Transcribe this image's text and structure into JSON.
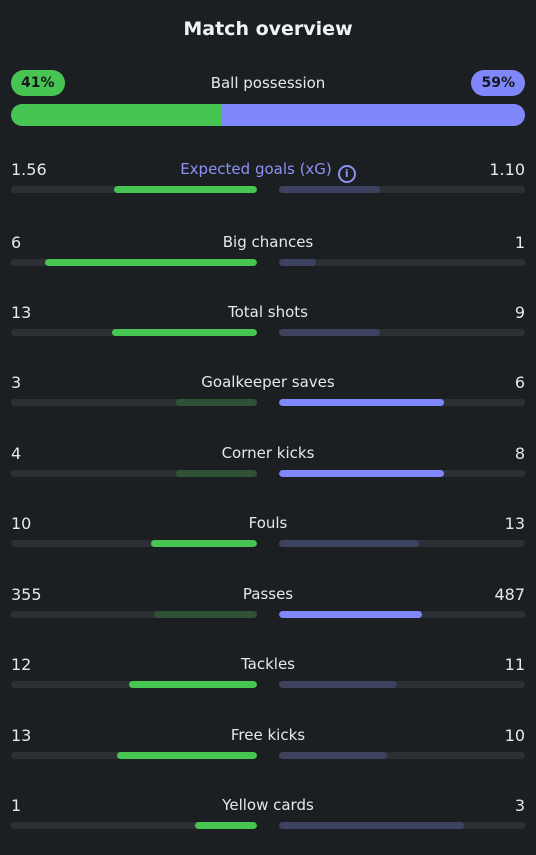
{
  "title": "Match overview",
  "possession": {
    "label": "Ball possession",
    "home_pct_text": "41%",
    "away_pct_text": "59%",
    "home_fraction": 0.41,
    "colors": {
      "home": "#47c553",
      "away": "#7f87fb"
    }
  },
  "colors": {
    "home_win": "#47c553",
    "home_lose": "#2f5236",
    "away_win": "#7f87fb",
    "away_lose": "#3c4260",
    "track": "#2c3034",
    "accent": "#8c92f5"
  },
  "stats": [
    {
      "label": "Expected goals (xG)",
      "home": "1.56",
      "away": "1.10",
      "home_frac": 0.58,
      "away_frac": 0.41,
      "winner": "home",
      "accent": true,
      "icon": "info-icon"
    },
    {
      "label": "Big chances",
      "home": "6",
      "away": "1",
      "home_frac": 0.86,
      "away_frac": 0.15,
      "winner": "home"
    },
    {
      "label": "Total shots",
      "home": "13",
      "away": "9",
      "home_frac": 0.59,
      "away_frac": 0.41,
      "winner": "home"
    },
    {
      "label": "Goalkeeper saves",
      "home": "3",
      "away": "6",
      "home_frac": 0.33,
      "away_frac": 0.67,
      "winner": "away"
    },
    {
      "label": "Corner kicks",
      "home": "4",
      "away": "8",
      "home_frac": 0.33,
      "away_frac": 0.67,
      "winner": "away"
    },
    {
      "label": "Fouls",
      "home": "10",
      "away": "13",
      "home_frac": 0.43,
      "away_frac": 0.57,
      "winner": "home"
    },
    {
      "label": "Passes",
      "home": "355",
      "away": "487",
      "home_frac": 0.42,
      "away_frac": 0.58,
      "winner": "away"
    },
    {
      "label": "Tackles",
      "home": "12",
      "away": "11",
      "home_frac": 0.52,
      "away_frac": 0.48,
      "winner": "home"
    },
    {
      "label": "Free kicks",
      "home": "13",
      "away": "10",
      "home_frac": 0.57,
      "away_frac": 0.44,
      "winner": "home"
    },
    {
      "label": "Yellow cards",
      "home": "1",
      "away": "3",
      "home_frac": 0.25,
      "away_frac": 0.75,
      "winner": "home"
    }
  ]
}
